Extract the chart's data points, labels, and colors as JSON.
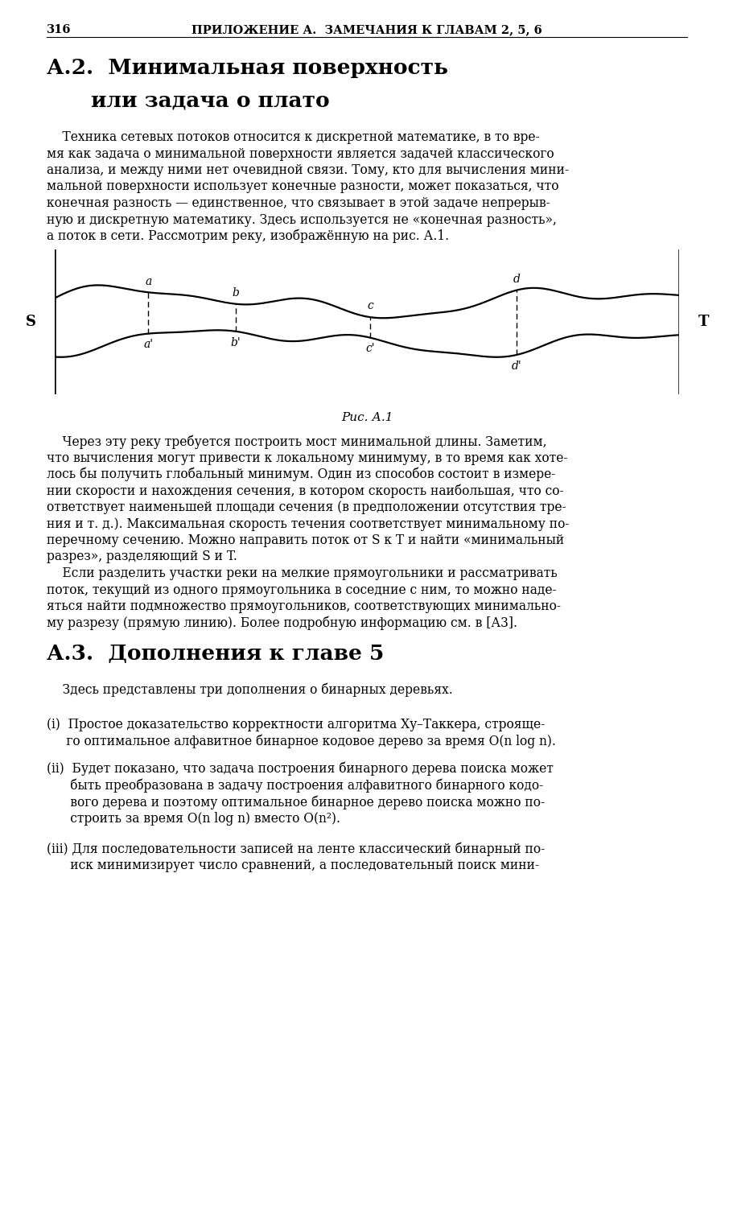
{
  "page_number": "316",
  "header": "ПРИЛОЖЕНИЕ А.  ЗАМЕЧАНИЯ К ГЛАВАМ 2, 5, 6",
  "section_a2_title_line1": "А.2.  Минимальная поверхность",
  "section_a2_title_line2": "или задача о плато",
  "fig_caption": "Рис. А.1",
  "section_a3_title": "А.3.  Дополнения к главе 5",
  "bg_color": "#ffffff",
  "text_color": "#000000",
  "para1_lines": [
    "    Техника сетевых потоков относится к дискретной математике, в то вре-",
    "мя как задача о минимальной поверхности является задачей классического",
    "анализа, и между ними нет очевидной связи. Тому, кто для вычисления мини-",
    "мальной поверхности использует конечные разности, может показаться, что",
    "конечная разность — единственное, что связывает в этой задаче непрерыв-",
    "ную и дискретную математику. Здесь используется не «конечная разность»,",
    "а поток в сети. Рассмотрим реку, изображённую на рис. А.1."
  ],
  "para2_lines": [
    "    Через эту реку требуется построить мост минимальной длины. Заметим,",
    "что вычисления могут привести к локальному минимуму, в то время как хоте-",
    "лось бы получить глобальный минимум. Один из способов состоит в измере-",
    "нии скорости и нахождения сечения, в котором скорость наибольшая, что со-",
    "ответствует наименьшей площади сечения (в предположении отсутствия тре-",
    "ния и т. д.). Максимальная скорость течения соответствует минимальному по-",
    "перечному сечению. Можно направить поток от S к T и найти «минимальный",
    "разрез», разделяющий S и T.",
    "    Если разделить участки реки на мелкие прямоугольники и рассматривать",
    "поток, текущий из одного прямоугольника в соседние с ним, то можно наде-",
    "яться найти подмножество прямоугольников, соответствующих минимально-",
    "му разрезу (прямую линию). Более подробную информацию см. в [А3]."
  ],
  "item_i_lines": [
    "(i)  Простое доказательство корректности алгоритма Ху–Таккера, строяще-",
    "     го оптимальное алфавитное бинарное кодовое дерево за время O(n log n)."
  ],
  "item_ii_lines": [
    "(ii)  Будет показано, что задача построения бинарного дерева поиска может",
    "      быть преобразована в задачу построения алфавитного бинарного кодо-",
    "      вого дерева и поэтому оптимальное бинарное дерево поиска можно по-",
    "      строить за время O(n log n) вместо O(n²)."
  ],
  "item_iii_lines": [
    "(iii) Для последовательности записей на ленте классический бинарный по-",
    "      иск минимизирует число сравнений, а последовательный поиск мини-"
  ]
}
